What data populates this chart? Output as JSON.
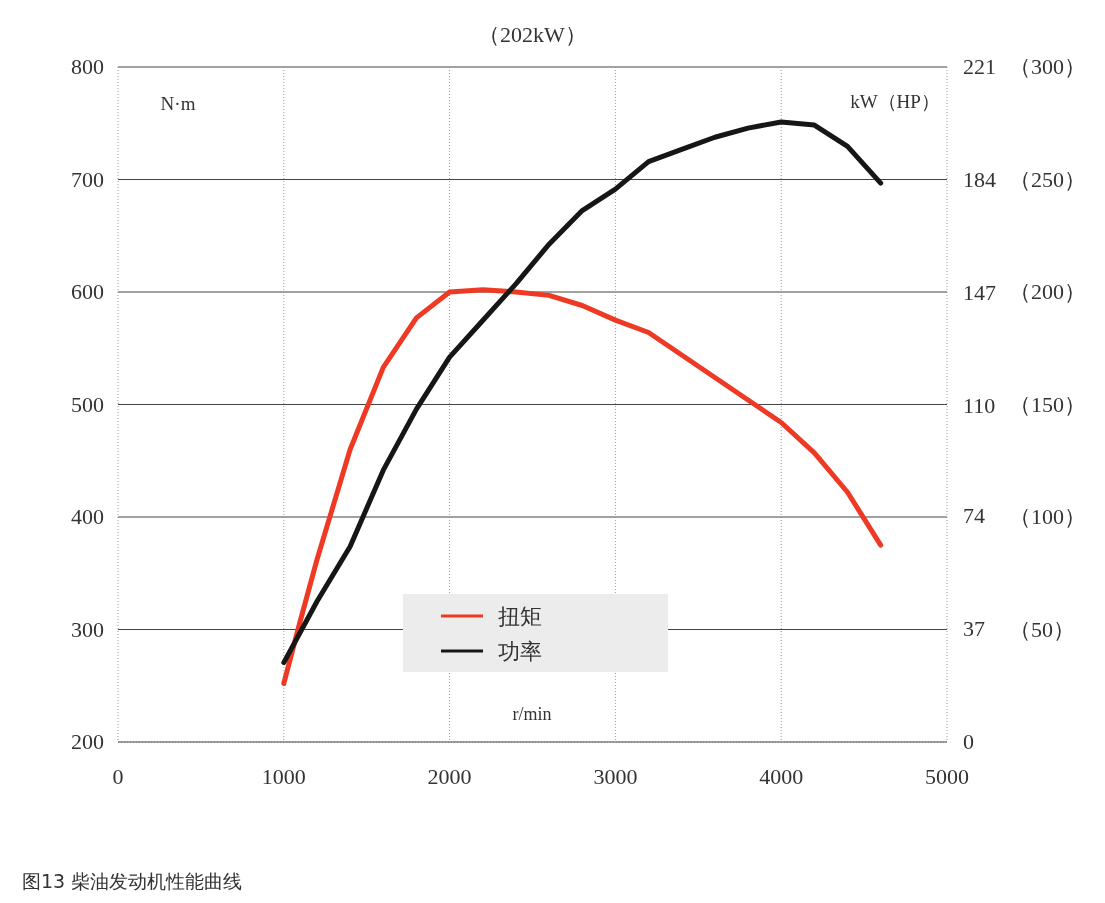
{
  "chart_data": {
    "type": "line",
    "title": "（202kW）",
    "xlabel": "r/min",
    "ylabel": "N·m",
    "y2label": "kW（HP）",
    "annotations": [
      "图13 柴油发动机性能曲线"
    ],
    "x": [
      1000,
      1100,
      1200,
      1400,
      1600,
      1800,
      2000,
      2200,
      2400,
      2600,
      2800,
      3000,
      3200,
      3400,
      3600,
      3800,
      4000,
      4200,
      4400,
      4600
    ],
    "series": [
      {
        "name": "扭矩",
        "color": "#ee3a24",
        "values": [
          252,
          308,
          362,
          460,
          533,
          577,
          600,
          602,
          600,
          597,
          588,
          575,
          564,
          544,
          524,
          504,
          484,
          457,
          422,
          375
        ]
      },
      {
        "name": "功率",
        "color": "#161616",
        "axis": "y2",
        "x": [
          1000,
          1200,
          1400,
          1600,
          1800,
          2000,
          2200,
          2400,
          2600,
          2800,
          3000,
          3200,
          3400,
          3600,
          3800,
          4000,
          4200,
          4400,
          4600
        ],
        "values": [
          26,
          46,
          64,
          89,
          109,
          126,
          138,
          150,
          163,
          174,
          181,
          190,
          194,
          198,
          201,
          203,
          202,
          195,
          183
        ]
      }
    ],
    "xlim": [
      0,
      5000
    ],
    "xticks": [
      0,
      1000,
      2000,
      3000,
      4000,
      5000
    ],
    "ylim": [
      200,
      800
    ],
    "yticks": [
      200,
      300,
      400,
      500,
      600,
      700,
      800
    ],
    "y2lim": [
      0,
      221
    ],
    "y2ticks": [
      0,
      37,
      74,
      110,
      147,
      184,
      221
    ],
    "y3lim": [
      0,
      300
    ],
    "y3ticks": [
      {
        "value": 50,
        "label": "（50）"
      },
      {
        "value": 100,
        "label": "（100）"
      },
      {
        "value": 150,
        "label": "（150）"
      },
      {
        "value": 200,
        "label": "（200）"
      },
      {
        "value": 250,
        "label": "（250）"
      },
      {
        "value": 300,
        "label": "（300）"
      }
    ],
    "grid": true,
    "legend": "bottom"
  }
}
